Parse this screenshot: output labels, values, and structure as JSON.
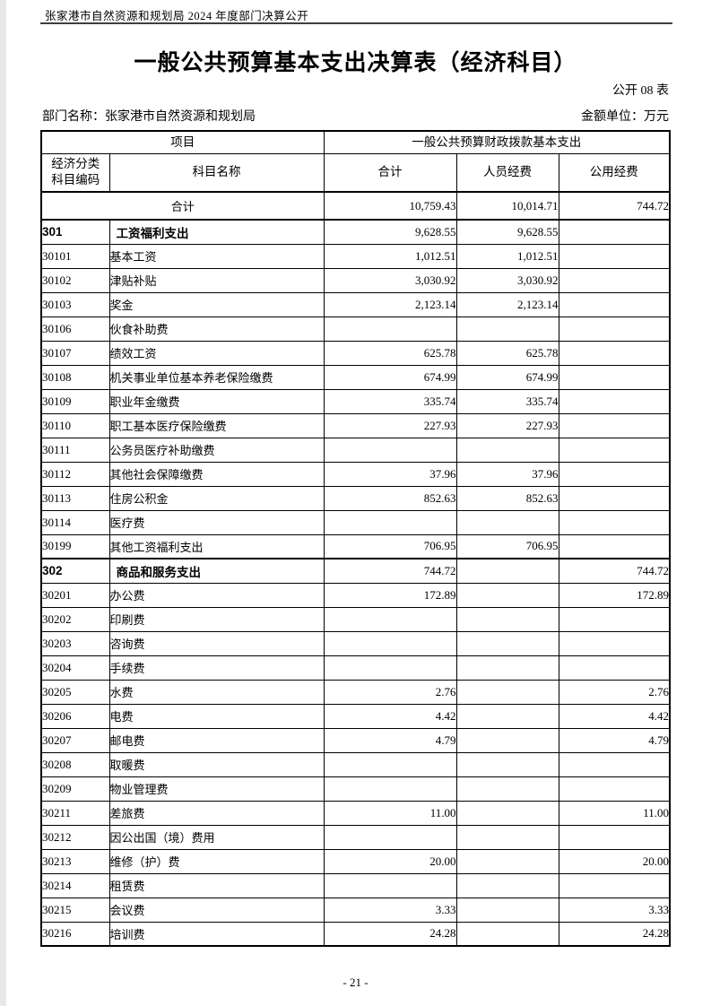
{
  "page": {
    "header_note": "张家港市自然资源和规划局 2024 年度部门决算公开",
    "title": "一般公共预算基本支出决算表（经济科目）",
    "table_label": "公开 08 表",
    "dept_label": "部门名称：张家港市自然资源和规划局",
    "unit_label": "金额单位：万元",
    "page_number": "- 21 -"
  },
  "table": {
    "header": {
      "project": "项目",
      "funding": "一般公共预算财政拨款基本支出",
      "code_line1": "经济分类",
      "code_line2": "科目编码",
      "name": "科目名称",
      "total": "合计",
      "personnel": "人员经费",
      "public": "公用经费"
    },
    "rows": [
      {
        "type": "summary",
        "code": "",
        "name": "合计",
        "total": "10,759.43",
        "personnel": "10,014.71",
        "public": "744.72"
      },
      {
        "type": "category",
        "code": "301",
        "name": "工资福利支出",
        "total": "9,628.55",
        "personnel": "9,628.55",
        "public": ""
      },
      {
        "type": "item",
        "code": "30101",
        "name": "基本工资",
        "total": "1,012.51",
        "personnel": "1,012.51",
        "public": ""
      },
      {
        "type": "item",
        "code": "30102",
        "name": "津贴补贴",
        "total": "3,030.92",
        "personnel": "3,030.92",
        "public": ""
      },
      {
        "type": "item",
        "code": "30103",
        "name": "奖金",
        "total": "2,123.14",
        "personnel": "2,123.14",
        "public": ""
      },
      {
        "type": "item",
        "code": "30106",
        "name": "伙食补助费",
        "total": "",
        "personnel": "",
        "public": ""
      },
      {
        "type": "item",
        "code": "30107",
        "name": "绩效工资",
        "total": "625.78",
        "personnel": "625.78",
        "public": ""
      },
      {
        "type": "item",
        "code": "30108",
        "name": "机关事业单位基本养老保险缴费",
        "total": "674.99",
        "personnel": "674.99",
        "public": ""
      },
      {
        "type": "item",
        "code": "30109",
        "name": "职业年金缴费",
        "total": "335.74",
        "personnel": "335.74",
        "public": ""
      },
      {
        "type": "item",
        "code": "30110",
        "name": "职工基本医疗保险缴费",
        "total": "227.93",
        "personnel": "227.93",
        "public": ""
      },
      {
        "type": "item",
        "code": "30111",
        "name": "公务员医疗补助缴费",
        "total": "",
        "personnel": "",
        "public": ""
      },
      {
        "type": "item",
        "code": "30112",
        "name": "其他社会保障缴费",
        "total": "37.96",
        "personnel": "37.96",
        "public": ""
      },
      {
        "type": "item",
        "code": "30113",
        "name": "住房公积金",
        "total": "852.63",
        "personnel": "852.63",
        "public": ""
      },
      {
        "type": "item",
        "code": "30114",
        "name": "医疗费",
        "total": "",
        "personnel": "",
        "public": ""
      },
      {
        "type": "item",
        "code": "30199",
        "name": "其他工资福利支出",
        "total": "706.95",
        "personnel": "706.95",
        "public": ""
      },
      {
        "type": "category",
        "code": "302",
        "name": "商品和服务支出",
        "total": "744.72",
        "personnel": "",
        "public": "744.72"
      },
      {
        "type": "item",
        "code": "30201",
        "name": "办公费",
        "total": "172.89",
        "personnel": "",
        "public": "172.89"
      },
      {
        "type": "item",
        "code": "30202",
        "name": "印刷费",
        "total": "",
        "personnel": "",
        "public": ""
      },
      {
        "type": "item",
        "code": "30203",
        "name": "咨询费",
        "total": "",
        "personnel": "",
        "public": ""
      },
      {
        "type": "item",
        "code": "30204",
        "name": "手续费",
        "total": "",
        "personnel": "",
        "public": ""
      },
      {
        "type": "item",
        "code": "30205",
        "name": "水费",
        "total": "2.76",
        "personnel": "",
        "public": "2.76"
      },
      {
        "type": "item",
        "code": "30206",
        "name": "电费",
        "total": "4.42",
        "personnel": "",
        "public": "4.42"
      },
      {
        "type": "item",
        "code": "30207",
        "name": "邮电费",
        "total": "4.79",
        "personnel": "",
        "public": "4.79"
      },
      {
        "type": "item",
        "code": "30208",
        "name": "取暖费",
        "total": "",
        "personnel": "",
        "public": ""
      },
      {
        "type": "item",
        "code": "30209",
        "name": "物业管理费",
        "total": "",
        "personnel": "",
        "public": ""
      },
      {
        "type": "item",
        "code": "30211",
        "name": "差旅费",
        "total": "11.00",
        "personnel": "",
        "public": "11.00"
      },
      {
        "type": "item",
        "code": "30212",
        "name": "因公出国（境）费用",
        "total": "",
        "personnel": "",
        "public": ""
      },
      {
        "type": "item",
        "code": "30213",
        "name": "维修（护）费",
        "total": "20.00",
        "personnel": "",
        "public": "20.00"
      },
      {
        "type": "item",
        "code": "30214",
        "name": "租赁费",
        "total": "",
        "personnel": "",
        "public": ""
      },
      {
        "type": "item",
        "code": "30215",
        "name": "会议费",
        "total": "3.33",
        "personnel": "",
        "public": "3.33"
      },
      {
        "type": "item",
        "code": "30216",
        "name": "培训费",
        "total": "24.28",
        "personnel": "",
        "public": "24.28"
      }
    ]
  }
}
